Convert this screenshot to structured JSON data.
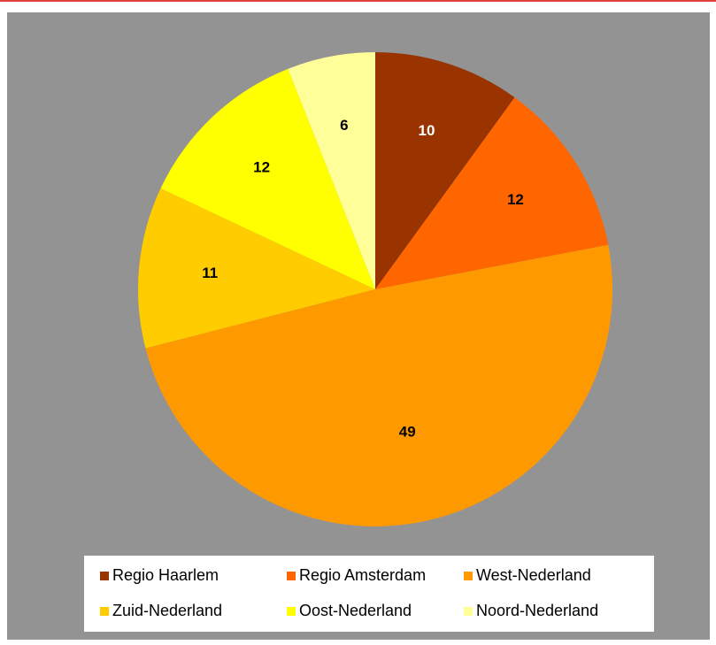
{
  "chart_data": {
    "type": "pie",
    "title": "",
    "categories": [
      "Regio Haarlem",
      "Regio Amsterdam",
      "West-Nederland",
      "Zuid-Nederland",
      "Oost-Nederland",
      "Noord-Nederland"
    ],
    "values": [
      10,
      12,
      49,
      11,
      12,
      6
    ],
    "colors": [
      "#993300",
      "#ff6600",
      "#ff9900",
      "#ffcc00",
      "#ffff00",
      "#ffff99"
    ],
    "label_colors": [
      "#ffffff",
      "#000000",
      "#000000",
      "#000000",
      "#000000",
      "#000000"
    ],
    "start_angle": "12 o'clock, clockwise",
    "legend_position": "bottom",
    "background_color": "#939393"
  }
}
